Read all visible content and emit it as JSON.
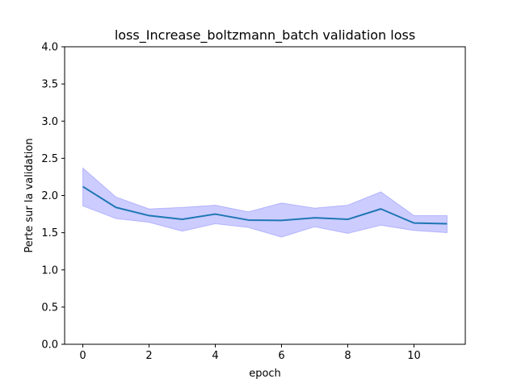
{
  "chart_data": {
    "type": "line",
    "title": "loss_Increase_boltzmann_batch validation loss",
    "xlabel": "epoch",
    "ylabel": "Perte sur la validation",
    "xlim": [
      -0.55,
      11.55
    ],
    "ylim": [
      0.0,
      4.0
    ],
    "xticks": [
      0,
      2,
      4,
      6,
      8,
      10
    ],
    "yticks": [
      0.0,
      0.5,
      1.0,
      1.5,
      2.0,
      2.5,
      3.0,
      3.5,
      4.0
    ],
    "xtick_labels": [
      "0",
      "2",
      "4",
      "6",
      "8",
      "10"
    ],
    "ytick_labels": [
      "0.0",
      "0.5",
      "1.0",
      "1.5",
      "2.0",
      "2.5",
      "3.0",
      "3.5",
      "4.0"
    ],
    "grid": false,
    "x": [
      0,
      1,
      2,
      3,
      4,
      5,
      6,
      7,
      8,
      9,
      10,
      11
    ],
    "series": [
      {
        "values": [
          2.12,
          1.84,
          1.73,
          1.68,
          1.75,
          1.67,
          1.665,
          1.7,
          1.68,
          1.82,
          1.63,
          1.62
        ],
        "upper": [
          2.37,
          1.98,
          1.82,
          1.84,
          1.87,
          1.78,
          1.9,
          1.83,
          1.87,
          2.05,
          1.73,
          1.73
        ],
        "lower": [
          1.86,
          1.69,
          1.64,
          1.52,
          1.62,
          1.57,
          1.44,
          1.58,
          1.49,
          1.6,
          1.53,
          1.5
        ]
      }
    ],
    "colors": {
      "line": "#1f77b4",
      "band": "#0000ff"
    }
  }
}
